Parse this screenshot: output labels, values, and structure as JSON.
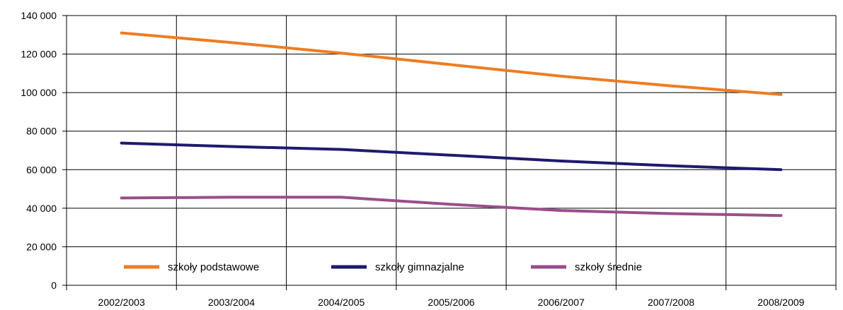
{
  "chart_data": {
    "type": "line",
    "title": "",
    "xlabel": "",
    "ylabel": "",
    "categories": [
      "2002/2003",
      "2003/2004",
      "2004/2005",
      "2005/2006",
      "2006/2007",
      "2007/2008",
      "2008/2009"
    ],
    "ylim": [
      0,
      140000
    ],
    "yticks": [
      0,
      20000,
      40000,
      60000,
      80000,
      100000,
      120000,
      140000
    ],
    "ytick_labels": [
      "0",
      "20 000",
      "40 000",
      "60 000",
      "80 000",
      "100 000",
      "120 000",
      "140 000"
    ],
    "grid": true,
    "legend_position": "bottom-inside",
    "series": [
      {
        "name": "szkoły podstawowe",
        "color": "#ED7D22",
        "values": [
          131000,
          126000,
          120500,
          114500,
          108500,
          103500,
          99000
        ]
      },
      {
        "name": "szkoły gimnazjalne",
        "color": "#1F1A6E",
        "values": [
          73800,
          72000,
          70500,
          67500,
          64500,
          62000,
          60000
        ]
      },
      {
        "name": "szkoły średnie",
        "color": "#9B4D8B",
        "values": [
          45300,
          45700,
          45700,
          42000,
          38800,
          37200,
          36200
        ]
      }
    ]
  }
}
